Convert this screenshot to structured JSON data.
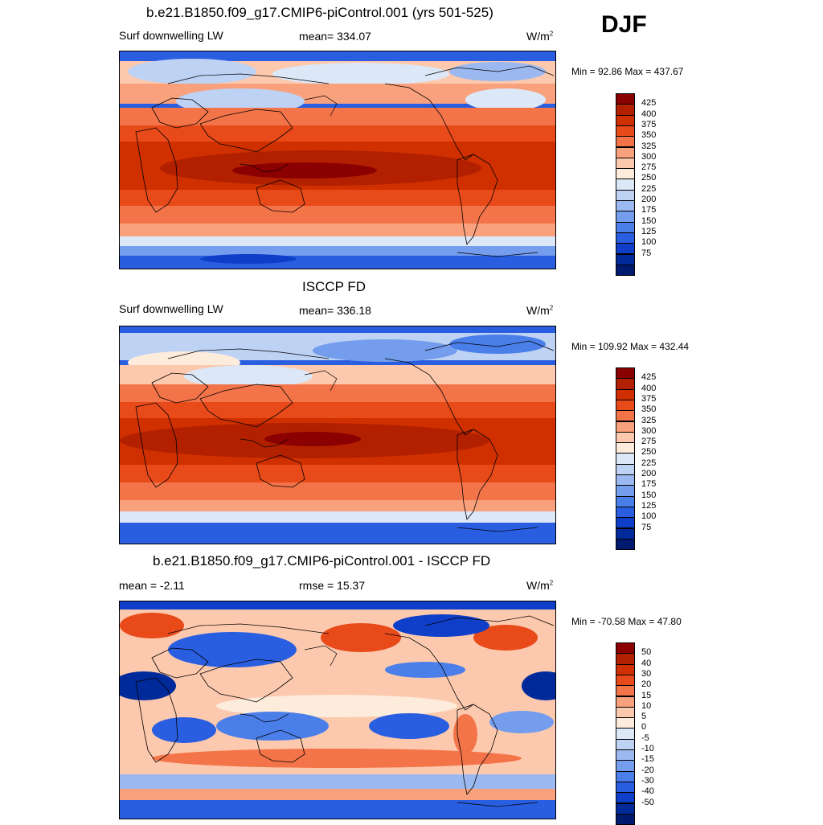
{
  "season": "DJF",
  "panels": [
    {
      "title": "b.e21.B1850.f09_g17.CMIP6-piControl.001 (yrs 501-525)",
      "left_label": "Surf downwelling LW",
      "center_label": "mean= 334.07",
      "units": "W/m",
      "units_exp": "2",
      "minmax": "Min =  92.86 Max = 437.67",
      "colorbar": {
        "colors": [
          "#8b0000",
          "#b22000",
          "#d03000",
          "#e84a1a",
          "#f4744a",
          "#f9a07c",
          "#fcc9ae",
          "#fdebdb",
          "#dce8f8",
          "#bed2f4",
          "#9bb9f0",
          "#749ded",
          "#4a7ee8",
          "#2a5ee0",
          "#0f3ec8",
          "#002a9a",
          "#001a70"
        ],
        "labels": [
          "425",
          "400",
          "375",
          "350",
          "325",
          "300",
          "275",
          "250",
          "225",
          "200",
          "175",
          "150",
          "125",
          "100",
          "75"
        ]
      }
    },
    {
      "title": "ISCCP FD",
      "left_label": "Surf downwelling LW",
      "center_label": "mean= 336.18",
      "units": "W/m",
      "units_exp": "2",
      "minmax": "Min = 109.92 Max = 432.44",
      "colorbar": {
        "colors": [
          "#8b0000",
          "#b22000",
          "#d03000",
          "#e84a1a",
          "#f4744a",
          "#f9a07c",
          "#fcc9ae",
          "#fdebdb",
          "#dce8f8",
          "#bed2f4",
          "#9bb9f0",
          "#749ded",
          "#4a7ee8",
          "#2a5ee0",
          "#0f3ec8",
          "#002a9a",
          "#001a70"
        ],
        "labels": [
          "425",
          "400",
          "375",
          "350",
          "325",
          "300",
          "275",
          "250",
          "225",
          "200",
          "175",
          "150",
          "125",
          "100",
          "75"
        ]
      }
    },
    {
      "title": "b.e21.B1850.f09_g17.CMIP6-piControl.001 - ISCCP FD",
      "left_label": "mean =  -2.11",
      "center_label": "rmse =  15.37",
      "units": "W/m",
      "units_exp": "2",
      "minmax": "Min = -70.58 Max =  47.80",
      "colorbar": {
        "colors": [
          "#8b0000",
          "#b22000",
          "#d03000",
          "#e84a1a",
          "#f4744a",
          "#f9a07c",
          "#fcc9ae",
          "#fdebdb",
          "#dce8f8",
          "#bed2f4",
          "#9bb9f0",
          "#749ded",
          "#4a7ee8",
          "#2a5ee0",
          "#0f3ec8",
          "#002a9a",
          "#001a70"
        ],
        "labels": [
          "50",
          "40",
          "30",
          "20",
          "15",
          "10",
          "5",
          "0",
          "-5",
          "-10",
          "-15",
          "-20",
          "-30",
          "-40",
          "-50"
        ]
      }
    }
  ]
}
